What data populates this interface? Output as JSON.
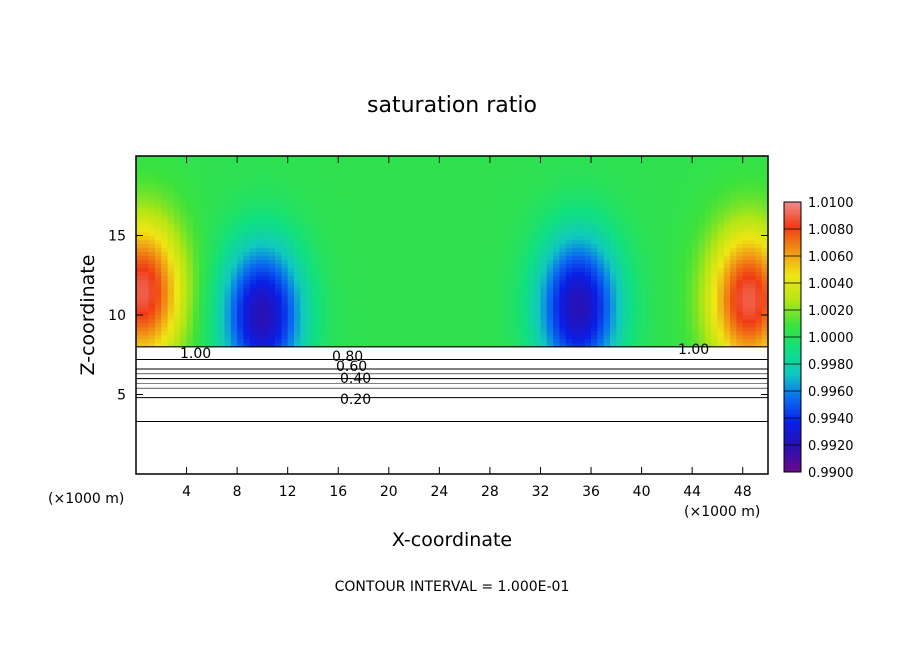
{
  "chart_data": {
    "type": "heatmap",
    "title": "saturation ratio",
    "xlabel": "X-coordinate",
    "ylabel": "Z-coordinate",
    "x_unit_left": "(×1000 m)",
    "x_unit_right": "(×1000 m)",
    "footer": "CONTOUR INTERVAL = 1.000E-01",
    "xlim": [
      0,
      50
    ],
    "ylim": [
      0,
      20
    ],
    "x_ticks": [
      4,
      8,
      12,
      16,
      20,
      24,
      28,
      32,
      36,
      40,
      44,
      48
    ],
    "x_tick_labels": [
      "4",
      "8",
      "12",
      "16",
      "20",
      "24",
      "28",
      "32",
      "36",
      "40",
      "44",
      "48"
    ],
    "y_ticks": [
      5,
      10,
      15
    ],
    "y_tick_labels": [
      "5",
      "10",
      "15"
    ],
    "colorbar": {
      "min": 0.99,
      "max": 1.01,
      "labels": [
        "1.0100",
        "1.0080",
        "1.0060",
        "1.0040",
        "1.0020",
        "1.0000",
        "0.9980",
        "0.9960",
        "0.9940",
        "0.9920",
        "0.9900"
      ],
      "colors": [
        "#6a0a8c",
        "#2a10b0",
        "#0a1ee6",
        "#0a6cf0",
        "#10c8c0",
        "#10e080",
        "#3ce23c",
        "#b4e614",
        "#f0e614",
        "#f09614",
        "#f03c14",
        "#f08c8c"
      ]
    },
    "contour_levels": [
      0.2,
      0.4,
      0.6,
      0.8,
      1.0
    ],
    "contour_labels": [
      "0.20",
      "0.40",
      "0.60",
      "0.80",
      "1.00",
      "1.00"
    ],
    "features": [
      {
        "kind": "minimum",
        "x": 10,
        "z": 10,
        "value": 0.992
      },
      {
        "kind": "minimum",
        "x": 35,
        "z": 10.5,
        "value": 0.992
      },
      {
        "kind": "maximum",
        "x": 0.5,
        "z": 11.5,
        "value": 1.009
      },
      {
        "kind": "maximum",
        "x": 48.5,
        "z": 11,
        "value": 1.009
      }
    ]
  }
}
